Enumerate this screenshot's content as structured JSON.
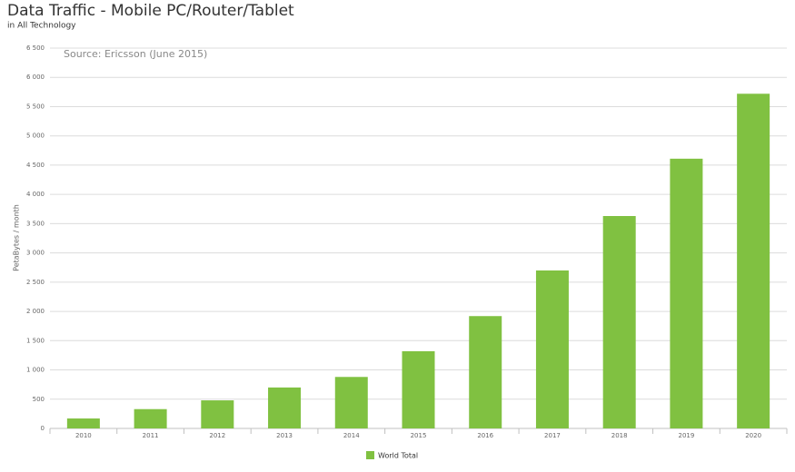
{
  "chart_data": {
    "type": "bar",
    "title": "Data Traffic - Mobile PC/Router/Tablet",
    "subtitle": "in All Technology",
    "annotation": "Source: Ericsson (June 2015)",
    "y_label": "PetaBytes / month",
    "categories": [
      "2010",
      "2011",
      "2012",
      "2013",
      "2014",
      "2015",
      "2016",
      "2017",
      "2018",
      "2019",
      "2020"
    ],
    "series": [
      {
        "name": "World Total",
        "color": "#80c141",
        "values": [
          170,
          330,
          480,
          700,
          880,
          1320,
          1920,
          2700,
          3630,
          4610,
          5720
        ]
      }
    ],
    "ylim": [
      0,
      6500
    ],
    "yticks": [
      0,
      500,
      {
        "value": 1000,
        "label": "1 000"
      },
      {
        "value": 1500,
        "label": "1 500"
      },
      {
        "value": 2000,
        "label": "2 000"
      },
      {
        "value": 2500,
        "label": "2 500"
      },
      {
        "value": 3000,
        "label": "3 000"
      },
      {
        "value": 3500,
        "label": "3 500"
      },
      {
        "value": 4000,
        "label": "4 000"
      },
      {
        "value": 4500,
        "label": "4 500"
      },
      {
        "value": 5000,
        "label": "5 000"
      },
      {
        "value": 5500,
        "label": "5 500"
      },
      {
        "value": 6000,
        "label": "6 000"
      },
      {
        "value": 6500,
        "label": "6 500"
      }
    ],
    "grid": true,
    "legend": "bottom"
  }
}
